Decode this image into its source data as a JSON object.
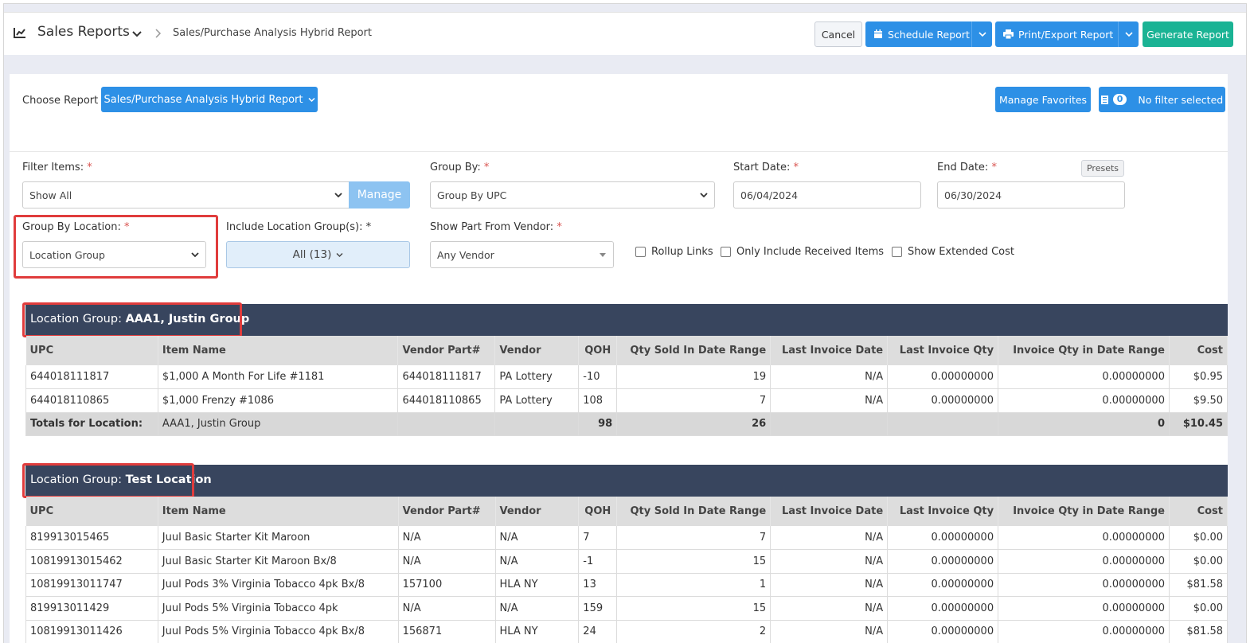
{
  "header": {
    "title": "Sales Reports",
    "breadcrumb": "Sales/Purchase Analysis Hybrid Report",
    "cancel_label": "Cancel",
    "schedule_label": "Schedule Report",
    "print_label": "Print/Export Report",
    "generate_label": "Generate Report"
  },
  "chooser": {
    "label": "Choose Report",
    "selected": "Sales/Purchase Analysis Hybrid Report",
    "manage_favorites": "Manage Favorites",
    "filter_count": "0",
    "filter_label": "No filter selected"
  },
  "filters": {
    "filter_items_label": "Filter Items:",
    "filter_items_value": "Show All",
    "manage_label": "Manage",
    "group_by_label": "Group By:",
    "group_by_value": "Group By UPC",
    "start_date_label": "Start Date:",
    "start_date_value": "06/04/2024",
    "end_date_label": "End Date:",
    "end_date_value": "06/30/2024",
    "presets_label": "Presets",
    "group_by_location_label": "Group By Location:",
    "group_by_location_value": "Location Group",
    "include_groups_label": "Include Location Group(s):",
    "include_groups_value": "All (13)",
    "vendor_label": "Show Part From Vendor:",
    "vendor_value": "Any Vendor",
    "rollup_label": "Rollup Links",
    "received_label": "Only Include Received Items",
    "extended_label": "Show Extended Cost",
    "required_mark": "*"
  },
  "columns": [
    "UPC",
    "Item Name",
    "Vendor Part#",
    "Vendor",
    "QOH",
    "Qty Sold In Date Range",
    "Last Invoice Date",
    "Last Invoice Qty",
    "Invoice Qty in Date Range",
    "Cost"
  ],
  "groups": [
    {
      "prefix": "Location Group: ",
      "name": "AAA1, Justin Group",
      "rows": [
        [
          "644018111817",
          "$1,000 A Month For Life #1181",
          "644018111817",
          "PA Lottery",
          "-10",
          "19",
          "N/A",
          "0.00000000",
          "0.00000000",
          "$0.95"
        ],
        [
          "644018110865",
          "$1,000 Frenzy #1086",
          "644018110865",
          "PA Lottery",
          "108",
          "7",
          "N/A",
          "0.00000000",
          "0.00000000",
          "$9.50"
        ]
      ],
      "totals": [
        "Totals for Location:",
        "AAA1, Justin Group",
        "",
        "",
        "98",
        "26",
        "",
        "",
        "0",
        "$10.45"
      ]
    },
    {
      "prefix": "Location Group: ",
      "name": "Test Location",
      "rows": [
        [
          "819913015465",
          "Juul Basic Starter Kit Maroon",
          "N/A",
          "N/A",
          "7",
          "7",
          "N/A",
          "0.00000000",
          "0.00000000",
          "$0.00"
        ],
        [
          "10819913015462",
          "Juul Basic Starter Kit Maroon Bx/8",
          "N/A",
          "N/A",
          "-1",
          "15",
          "N/A",
          "0.00000000",
          "0.00000000",
          "$0.00"
        ],
        [
          "10819913011747",
          "Juul Pods 3% Virginia Tobacco 4pk Bx/8",
          "157100",
          "HLA NY",
          "13",
          "1",
          "N/A",
          "0.00000000",
          "0.00000000",
          "$81.58"
        ],
        [
          "819913011429",
          "Juul Pods 5% Virginia Tobacco 4pk",
          "N/A",
          "N/A",
          "159",
          "15",
          "N/A",
          "0.00000000",
          "0.00000000",
          "$0.00"
        ],
        [
          "10819913011426",
          "Juul Pods 5% Virginia Tobacco 4pk Bx/8",
          "156871",
          "HLA NY",
          "24",
          "2",
          "N/A",
          "0.00000000",
          "0.00000000",
          "$81.58"
        ]
      ]
    }
  ]
}
